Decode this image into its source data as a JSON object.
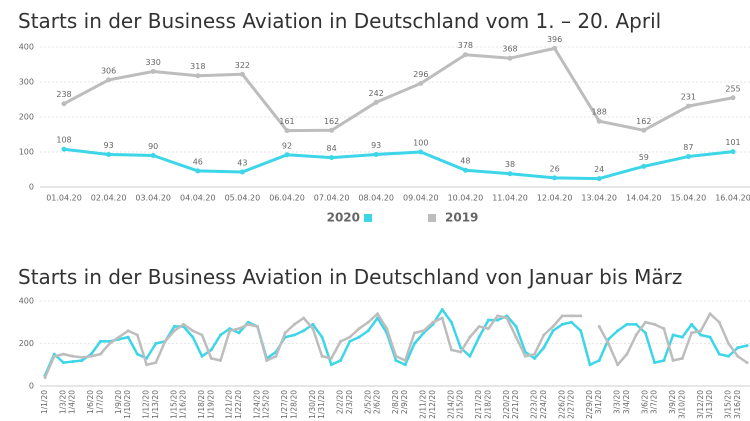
{
  "chart_data": [
    {
      "type": "line",
      "title": "Starts in der Business Aviation in Deutschland vom 1. – 20. April",
      "categories": [
        "01.04.20",
        "02.04.20",
        "03.04.20",
        "04.04.20",
        "05.04.20",
        "06.04.20",
        "07.04.20",
        "08.04.20",
        "09.04.20",
        "10.04.20",
        "11.04.20",
        "12.04.20",
        "13.04.20",
        "14.04.20",
        "15.04.20",
        "16.04.20"
      ],
      "series": [
        {
          "name": "2020",
          "color": "#3dd6e8",
          "values": [
            108,
            93,
            90,
            46,
            43,
            92,
            84,
            93,
            100,
            48,
            38,
            26,
            24,
            59,
            87,
            101
          ]
        },
        {
          "name": "2019",
          "color": "#bdbdbd",
          "values": [
            238,
            306,
            330,
            318,
            322,
            161,
            162,
            242,
            296,
            378,
            368,
            396,
            188,
            162,
            231,
            255
          ]
        }
      ],
      "ylim": [
        0,
        400
      ],
      "yticks": [
        0,
        100,
        200,
        300,
        400
      ],
      "grid": true,
      "data_labels": true,
      "legend": "bottom"
    },
    {
      "type": "line",
      "title": "Starts in der Business Aviation in Deutschland von Januar bis März",
      "categories": [
        "1/1/20",
        null,
        "1/3/20",
        "1/4/20",
        null,
        "1/6/20",
        "1/7/20",
        null,
        "1/9/20",
        "1/10/20",
        null,
        "1/12/20",
        "1/13/20",
        null,
        "1/15/20",
        "1/16/20",
        null,
        "1/18/20",
        "1/19/20",
        null,
        "1/21/20",
        "1/22/20",
        null,
        "1/24/20",
        "1/25/20",
        null,
        "1/27/20",
        "1/28/20",
        null,
        "1/30/20",
        "1/31/20",
        null,
        "2/2/20",
        "2/3/20",
        null,
        "2/5/20",
        "2/6/20",
        null,
        "2/8/20",
        "2/9/20",
        null,
        "2/11/20",
        "2/12/20",
        null,
        "2/14/20",
        "2/15/20",
        null,
        "2/17/20",
        "2/18/20",
        null,
        "2/20/20",
        "2/21/20",
        null,
        "2/23/20",
        "2/24/20",
        null,
        "2/26/20",
        "2/27/20",
        null,
        "2/29/20",
        "3/1/20",
        null,
        "3/3/20",
        "3/4/20",
        null,
        "3/6/20",
        "3/7/20",
        null,
        "3/9/20",
        "3/10/20",
        null,
        "3/12/20",
        "3/13/20",
        null,
        "3/15/20",
        "3/16/20",
        null
      ],
      "series": [
        {
          "color": "#3dd6e8",
          "values": [
            50,
            150,
            110,
            115,
            120,
            150,
            210,
            210,
            220,
            230,
            150,
            130,
            200,
            210,
            280,
            280,
            230,
            140,
            170,
            240,
            270,
            250,
            300,
            280,
            130,
            160,
            230,
            240,
            260,
            290,
            230,
            100,
            120,
            210,
            230,
            260,
            320,
            250,
            120,
            100,
            200,
            250,
            290,
            360,
            300,
            180,
            140,
            230,
            310,
            310,
            330,
            280,
            160,
            130,
            180,
            260,
            290,
            300,
            260,
            100,
            120,
            220,
            260,
            290,
            290,
            250,
            110,
            120,
            240,
            230,
            290,
            240,
            230,
            150,
            140,
            180,
            190
          ]
        },
        {
          "color": "#bdbdbd",
          "values": [
            40,
            140,
            150,
            140,
            135,
            140,
            150,
            200,
            230,
            260,
            240,
            100,
            110,
            210,
            260,
            290,
            260,
            240,
            130,
            120,
            260,
            270,
            290,
            280,
            120,
            140,
            250,
            290,
            320,
            270,
            140,
            130,
            210,
            230,
            270,
            300,
            340,
            270,
            140,
            120,
            250,
            260,
            300,
            320,
            170,
            160,
            230,
            280,
            270,
            330,
            320,
            230,
            140,
            150,
            240,
            280,
            330,
            330,
            330,
            null,
            280,
            200,
            100,
            150,
            240,
            300,
            290,
            270,
            120,
            130,
            250,
            260,
            340,
            300,
            200,
            140,
            110
          ]
        }
      ],
      "ylim": [
        0,
        400
      ],
      "yticks": [
        0,
        200,
        400
      ],
      "grid": true
    }
  ]
}
